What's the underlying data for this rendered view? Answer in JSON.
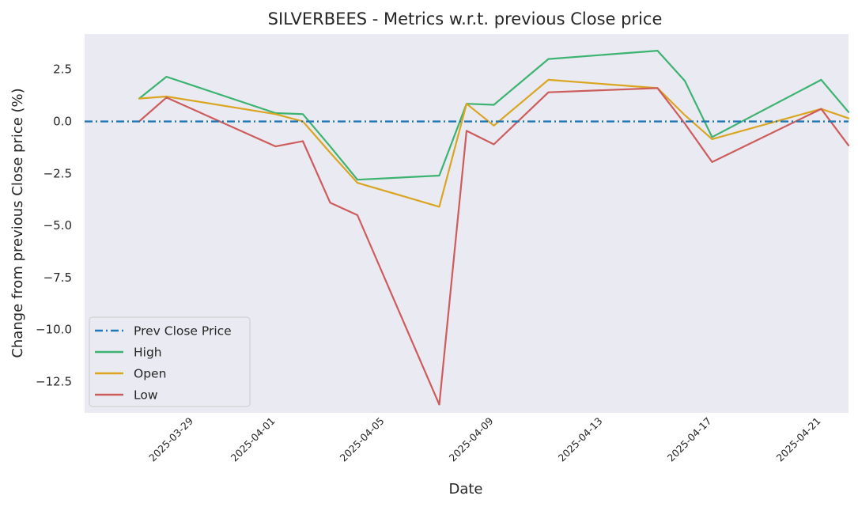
{
  "chart_data": {
    "type": "line",
    "title": "SILVERBEES - Metrics w.r.t. previous Close price",
    "xlabel": "Date",
    "ylabel": "Change from previous Close price (%)",
    "xlim": [
      "2025-03-25",
      "2025-04-22"
    ],
    "ylim": [
      -14.0,
      4.2
    ],
    "yticks": [
      2.5,
      0.0,
      -2.5,
      -5.0,
      -7.5,
      -10.0,
      -12.5
    ],
    "ytick_labels": [
      "2.5",
      "0.0",
      "−2.5",
      "−5.0",
      "−7.5",
      "−10.0",
      "−12.5"
    ],
    "xticks": [
      "2025-03-29",
      "2025-04-01",
      "2025-04-05",
      "2025-04-09",
      "2025-04-13",
      "2025-04-17",
      "2025-04-21"
    ],
    "grid": false,
    "legend_position": "lower-left",
    "x": [
      "2025-03-27",
      "2025-03-28",
      "2025-04-01",
      "2025-04-02",
      "2025-04-03",
      "2025-04-04",
      "2025-04-07",
      "2025-04-08",
      "2025-04-09",
      "2025-04-11",
      "2025-04-15",
      "2025-04-16",
      "2025-04-17",
      "2025-04-21",
      "2025-04-22"
    ],
    "reference_line": {
      "name": "Prev Close Price",
      "value": 0.0,
      "color": "#1f77b4",
      "style": "dash-dot"
    },
    "series": [
      {
        "name": "High",
        "color": "#3cb371",
        "values": [
          1.1,
          2.15,
          0.4,
          0.35,
          -1.2,
          -2.8,
          -2.6,
          0.85,
          0.8,
          3.0,
          3.4,
          1.95,
          -0.75,
          2.0,
          0.45
        ]
      },
      {
        "name": "Open",
        "color": "#daa520",
        "values": [
          1.1,
          1.2,
          0.35,
          0.0,
          -1.5,
          -2.95,
          -4.1,
          0.85,
          -0.2,
          2.0,
          1.6,
          0.3,
          -0.85,
          0.6,
          0.15
        ]
      },
      {
        "name": "Low",
        "color": "#cd5c5c",
        "values": [
          0.0,
          1.15,
          -1.2,
          -0.95,
          -3.9,
          -4.5,
          -13.6,
          -0.45,
          -1.1,
          1.4,
          1.6,
          -0.1,
          -1.95,
          0.6,
          -1.15
        ]
      }
    ]
  }
}
